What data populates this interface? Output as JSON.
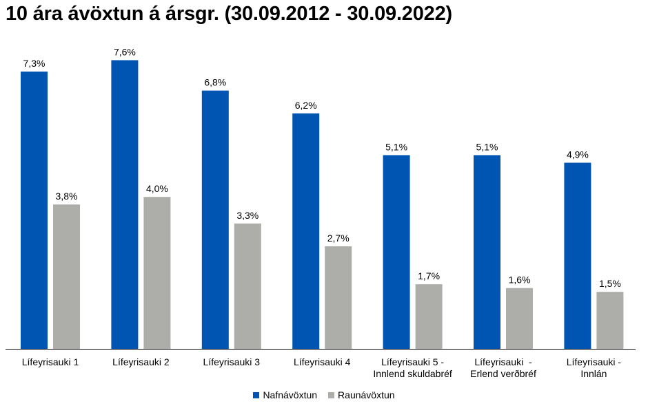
{
  "chart_data": {
    "type": "bar",
    "title": "10 ára ávöxtun á ársgr. (30.09.2012 - 30.09.2022)",
    "xlabel": "",
    "ylabel": "",
    "ylim": [
      0,
      8
    ],
    "grid": false,
    "legend_position": "bottom",
    "categories": [
      [
        "Lífeyrisauki 1"
      ],
      [
        "Lífeyrisauki 2"
      ],
      [
        "Lífeyrisauki 3"
      ],
      [
        "Lífeyrisauki 4"
      ],
      [
        "Lífeyrisauki 5 -",
        "Innlend skuldabréf"
      ],
      [
        "Lífeyrisauki  -",
        "Erlend verðbréf"
      ],
      [
        "Lífeyrisauki -",
        "Innlán"
      ]
    ],
    "series": [
      {
        "name": "Nafnávöxtun",
        "color": "#0055b3",
        "values": [
          7.3,
          7.6,
          6.8,
          6.2,
          5.1,
          5.1,
          4.9
        ],
        "labels": [
          "7,3%",
          "7,6%",
          "6,8%",
          "6,2%",
          "5,1%",
          "5,1%",
          "4,9%"
        ]
      },
      {
        "name": "Raunávöxtun",
        "color": "#adadaa",
        "values": [
          3.8,
          4.0,
          3.3,
          2.7,
          1.7,
          1.6,
          1.5
        ],
        "labels": [
          "3,8%",
          "4,0%",
          "3,3%",
          "2,7%",
          "1,7%",
          "1,6%",
          "1,5%"
        ]
      }
    ]
  }
}
